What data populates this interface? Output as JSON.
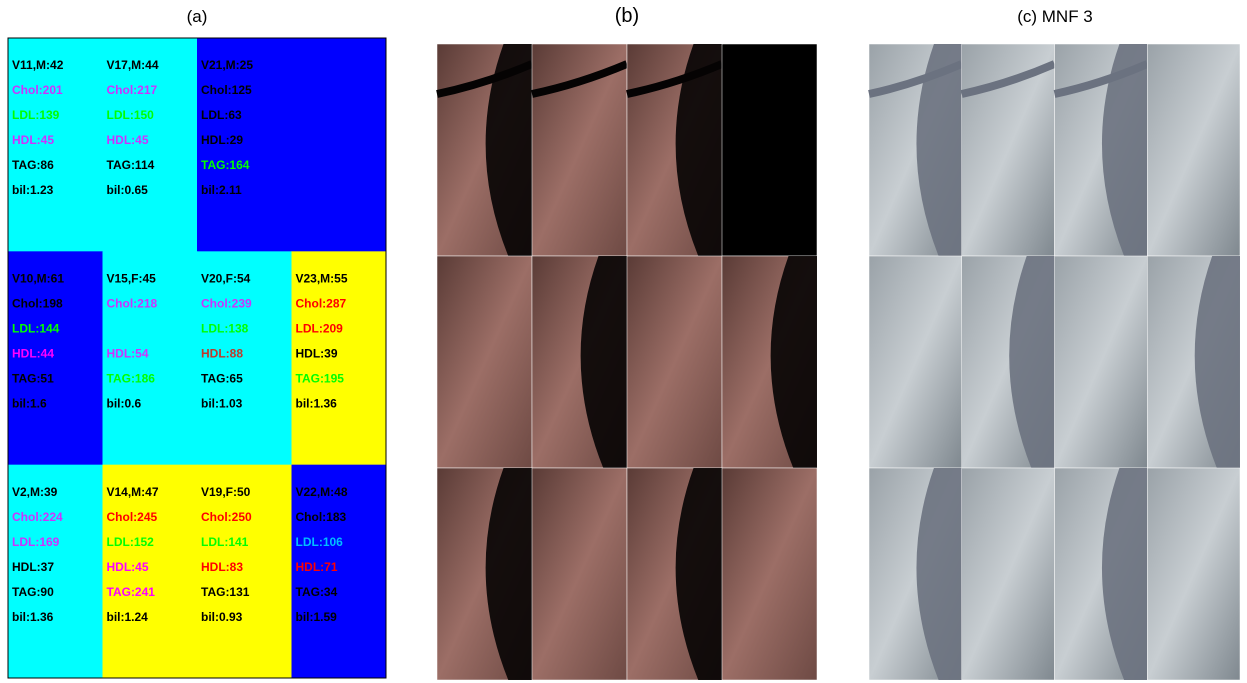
{
  "panels": [
    {
      "title": "(a)",
      "grid": [
        [
          {
            "color": "#00ffff",
            "lines": [
              {
                "text": "V11,M:42",
                "color": "#000000"
              },
              {
                "text": "Chol:201",
                "color": "#cc33ff"
              },
              {
                "text": "LDL:139",
                "color": "#00ff00"
              },
              {
                "text": "HDL:45",
                "color": "#cc33ff"
              },
              {
                "text": "TAG:86",
                "color": "#000000"
              },
              {
                "text": "bil:1.23",
                "color": "#000000"
              }
            ]
          },
          {
            "color": "#00ffff",
            "lines": [
              {
                "text": "V17,M:44",
                "color": "#000000"
              },
              {
                "text": "Chol:217",
                "color": "#cc33ff"
              },
              {
                "text": "LDL:150",
                "color": "#00ff00"
              },
              {
                "text": "HDL:45",
                "color": "#cc33ff"
              },
              {
                "text": "TAG:114",
                "color": "#000000"
              },
              {
                "text": "bil:0.65",
                "color": "#000000"
              }
            ]
          },
          {
            "color": "#0000ff",
            "lines": [
              {
                "text": "V21,M:25",
                "color": "#000000"
              },
              {
                "text": "Chol:125",
                "color": "#000000"
              },
              {
                "text": "LDL:63",
                "color": "#000000"
              },
              {
                "text": "HDL:29",
                "color": "#000000"
              },
              {
                "text": "TAG:164",
                "color": "#00ff00"
              },
              {
                "text": "bil:2.11",
                "color": "#000000"
              }
            ]
          },
          {
            "color": "#0000ff",
            "lines": []
          }
        ],
        [
          {
            "color": "#0000ff",
            "lines": [
              {
                "text": "V10,M:61",
                "color": "#000000"
              },
              {
                "text": "Chol:198",
                "color": "#000000"
              },
              {
                "text": "LDL:144",
                "color": "#00ff00"
              },
              {
                "text": "HDL:44",
                "color": "#ff00ff"
              },
              {
                "text": "TAG:51",
                "color": "#000000"
              },
              {
                "text": "bil:1.6",
                "color": "#000000"
              }
            ]
          },
          {
            "color": "#00ffff",
            "lines": [
              {
                "text": "V15,F:45",
                "color": "#000000"
              },
              {
                "text": "Chol:218",
                "color": "#cc33ff"
              },
              null,
              {
                "text": "HDL:54",
                "color": "#cc33ff"
              },
              {
                "text": "TAG:186",
                "color": "#00ff00"
              },
              {
                "text": "bil:0.6",
                "color": "#000000"
              }
            ]
          },
          {
            "color": "#00ffff",
            "lines": [
              {
                "text": "V20,F:54",
                "color": "#000000"
              },
              {
                "text": "Chol:239",
                "color": "#cc33ff"
              },
              {
                "text": "LDL:138",
                "color": "#00ff00"
              },
              {
                "text": "HDL:88",
                "color": "#c0392b"
              },
              {
                "text": "TAG:65",
                "color": "#000000"
              },
              {
                "text": "bil:1.03",
                "color": "#000000"
              }
            ]
          },
          {
            "color": "#ffff00",
            "lines": [
              {
                "text": "V23,M:55",
                "color": "#000000"
              },
              {
                "text": "Chol:287",
                "color": "#ff0000"
              },
              {
                "text": "LDL:209",
                "color": "#ff0000"
              },
              {
                "text": "HDL:39",
                "color": "#000000"
              },
              {
                "text": "TAG:195",
                "color": "#00ff00"
              },
              {
                "text": "bil:1.36",
                "color": "#000000"
              }
            ]
          }
        ],
        [
          {
            "color": "#00ffff",
            "lines": [
              {
                "text": "V2,M:39",
                "color": "#000000"
              },
              {
                "text": "Chol:224",
                "color": "#cc33ff"
              },
              {
                "text": "LDL:169",
                "color": "#cc33ff"
              },
              {
                "text": "HDL:37",
                "color": "#000000"
              },
              {
                "text": "TAG:90",
                "color": "#000000"
              },
              {
                "text": "bil:1.36",
                "color": "#000000"
              }
            ]
          },
          {
            "color": "#ffff00",
            "lines": [
              {
                "text": "V14,M:47",
                "color": "#000000"
              },
              {
                "text": "Chol:245",
                "color": "#ff0000"
              },
              {
                "text": "LDL:152",
                "color": "#00ff00"
              },
              {
                "text": "HDL:45",
                "color": "#ff00ff"
              },
              {
                "text": "TAG:241",
                "color": "#ff00ff"
              },
              {
                "text": "bil:1.24",
                "color": "#000000"
              }
            ]
          },
          {
            "color": "#ffff00",
            "lines": [
              {
                "text": "V19,F:50",
                "color": "#000000"
              },
              {
                "text": "Chol:250",
                "color": "#ff0000"
              },
              {
                "text": "LDL:141",
                "color": "#00ff00"
              },
              {
                "text": "HDL:83",
                "color": "#ff0000"
              },
              {
                "text": "TAG:131",
                "color": "#000000"
              },
              {
                "text": "bil:0.93",
                "color": "#000000"
              }
            ]
          },
          {
            "color": "#0000ff",
            "lines": [
              {
                "text": "V22,M:48",
                "color": "#000000"
              },
              {
                "text": "Chol:183",
                "color": "#000000"
              },
              {
                "text": "LDL:106",
                "color": "#00bfff"
              },
              {
                "text": "HDL:71",
                "color": "#ff0000"
              },
              {
                "text": "TAG:34",
                "color": "#000000"
              },
              {
                "text": "bil:1.59",
                "color": "#000000"
              }
            ]
          }
        ]
      ]
    },
    {
      "title": "(b)"
    },
    {
      "title": "(c) MNF 3"
    }
  ]
}
